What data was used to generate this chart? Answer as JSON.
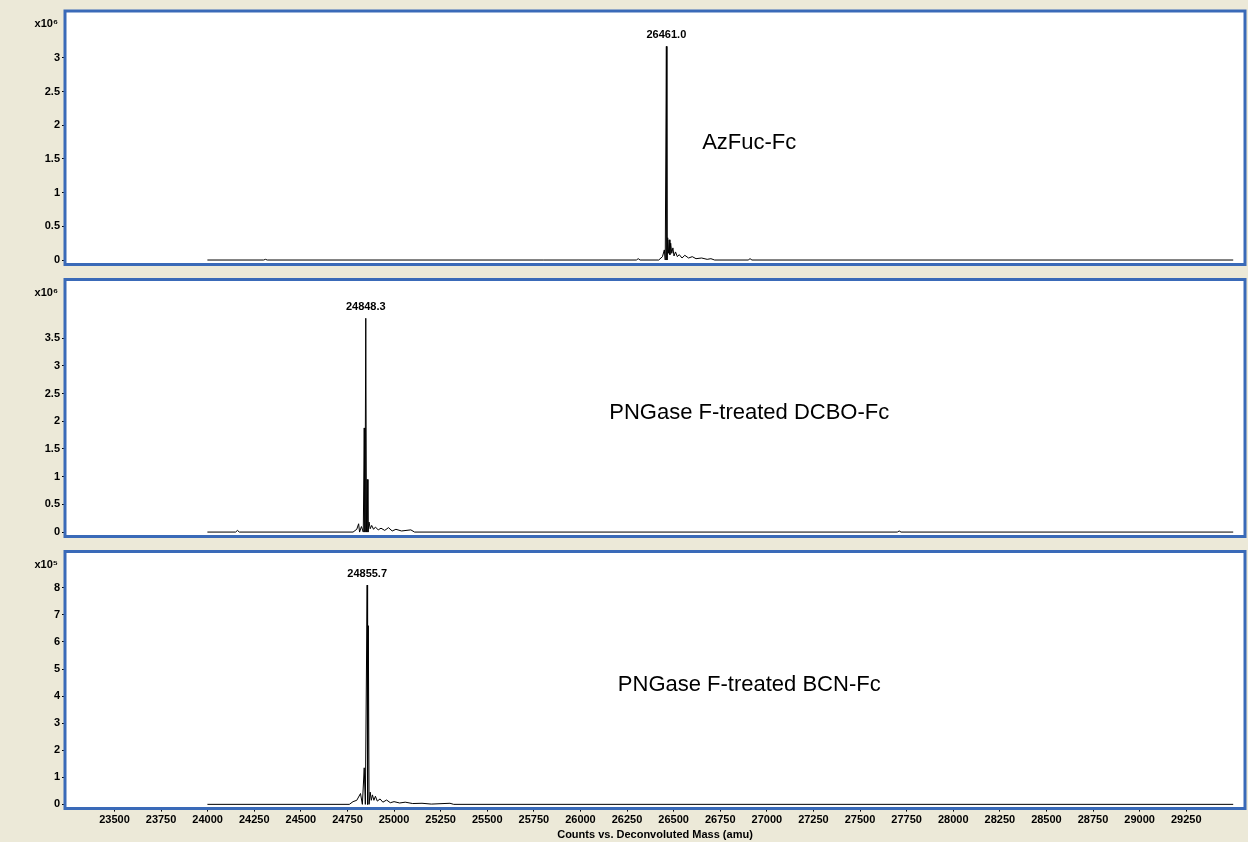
{
  "chart_data": [
    {
      "type": "line",
      "ylabel": "x10⁶",
      "xlim": [
        23240,
        29560
      ],
      "xticks": [
        23500,
        23750,
        24000,
        24250,
        24500,
        24750,
        25000,
        25250,
        25500,
        25750,
        26000,
        26250,
        26500,
        26750,
        27000,
        27250,
        27500,
        27750,
        28000,
        28250,
        28500,
        28750,
        29000,
        29250
      ],
      "ylim": [
        -0.05,
        3.68
      ],
      "yticks": [
        0,
        0.5,
        1,
        1.5,
        2,
        2.5,
        3
      ],
      "tick_labels": "y",
      "grid": false,
      "series": [
        {
          "color": "#000000",
          "x": [
            24000,
            24300,
            24310,
            24320,
            25800,
            26300,
            26310,
            26320,
            26420,
            26440,
            26450,
            26455,
            26461,
            26464,
            26468,
            26472,
            26476,
            26480,
            26484,
            26490,
            26496,
            26502,
            26510,
            26520,
            26530,
            26545,
            26560,
            26580,
            26600,
            26620,
            26650,
            26680,
            26700,
            26720,
            26900,
            26910,
            26920,
            29500
          ],
          "values": [
            0,
            0,
            0.01,
            0,
            0,
            0,
            0.02,
            0,
            0,
            0.05,
            0.15,
            0,
            3.17,
            0,
            0.33,
            0.1,
            0.3,
            0.08,
            0.25,
            0.1,
            0.18,
            0.06,
            0.12,
            0.05,
            0.08,
            0.03,
            0.07,
            0.03,
            0.05,
            0.02,
            0.03,
            0.01,
            0.02,
            0,
            0,
            0.02,
            0,
            0
          ]
        }
      ],
      "annotations": [
        {
          "text": "26461.0",
          "x": 26461,
          "y": 3.17
        },
        "AzFuc-Fc"
      ]
    },
    {
      "type": "line",
      "ylabel": "x10⁶",
      "xlim": [
        23240,
        29560
      ],
      "xticks": [
        23500,
        23750,
        24000,
        24250,
        24500,
        24750,
        25000,
        25250,
        25500,
        25750,
        26000,
        26250,
        26500,
        26750,
        27000,
        27250,
        27500,
        27750,
        28000,
        28250,
        28500,
        28750,
        29000,
        29250
      ],
      "ylim": [
        -0.06,
        4.54
      ],
      "yticks": [
        0,
        0.5,
        1,
        1.5,
        2,
        2.5,
        3,
        3.5
      ],
      "tick_labels": "y",
      "grid": false,
      "series": [
        {
          "color": "#000000",
          "x": [
            24000,
            24150,
            24160,
            24170,
            24780,
            24800,
            24810,
            24815,
            24825,
            24835,
            24840,
            24844,
            24848.3,
            24852,
            24856,
            24860,
            24866,
            24872,
            24880,
            24890,
            24900,
            24915,
            24930,
            24950,
            24970,
            24990,
            25010,
            25040,
            25090,
            25110,
            27700,
            27710,
            27720,
            29500
          ],
          "values": [
            0,
            0,
            0.03,
            0,
            0,
            0.05,
            0.15,
            0,
            0.1,
            0,
            1.88,
            0,
            3.86,
            0,
            0.95,
            0,
            0.18,
            0.06,
            0.12,
            0.05,
            0.09,
            0.04,
            0.07,
            0.03,
            0.08,
            0.02,
            0.05,
            0.02,
            0.04,
            0,
            0,
            0.02,
            0,
            0
          ]
        }
      ],
      "annotations": [
        {
          "text": "24848.3",
          "x": 24848.3,
          "y": 3.86
        },
        "PNGase F-treated DCBO-Fc"
      ]
    },
    {
      "type": "line",
      "ylabel": "x10⁵",
      "xlabel": "Counts vs. Deconvoluted Mass (amu)",
      "xlim": [
        23240,
        29560
      ],
      "xticks": [
        23500,
        23750,
        24000,
        24250,
        24500,
        24750,
        25000,
        25250,
        25500,
        25750,
        26000,
        26250,
        26500,
        26750,
        27000,
        27250,
        27500,
        27750,
        28000,
        28250,
        28500,
        28750,
        29000,
        29250
      ],
      "ylim": [
        -0.12,
        9.3
      ],
      "yticks": [
        0,
        1,
        2,
        3,
        4,
        5,
        6,
        7,
        8
      ],
      "grid": false,
      "series": [
        {
          "color": "#000000",
          "x": [
            24000,
            24760,
            24780,
            24800,
            24820,
            24830,
            24840,
            24846,
            24855.7,
            24858,
            24862,
            24866,
            24872,
            24878,
            24884,
            24892,
            24900,
            24910,
            24925,
            24940,
            24960,
            24980,
            25000,
            25030,
            25060,
            25100,
            25150,
            25200,
            25300,
            25320,
            29500
          ],
          "values": [
            0,
            0,
            0.1,
            0.15,
            0.4,
            0,
            1.35,
            0,
            8.1,
            0,
            6.6,
            0,
            0.45,
            0.15,
            0.35,
            0.15,
            0.3,
            0.12,
            0.2,
            0.08,
            0.16,
            0.06,
            0.1,
            0.05,
            0.08,
            0.03,
            0.04,
            0.01,
            0.04,
            0,
            0
          ]
        }
      ],
      "annotations": [
        {
          "text": "24855.7",
          "x": 24855.7,
          "y": 8.1
        },
        "PNGase F-treated BCN-Fc"
      ]
    }
  ]
}
